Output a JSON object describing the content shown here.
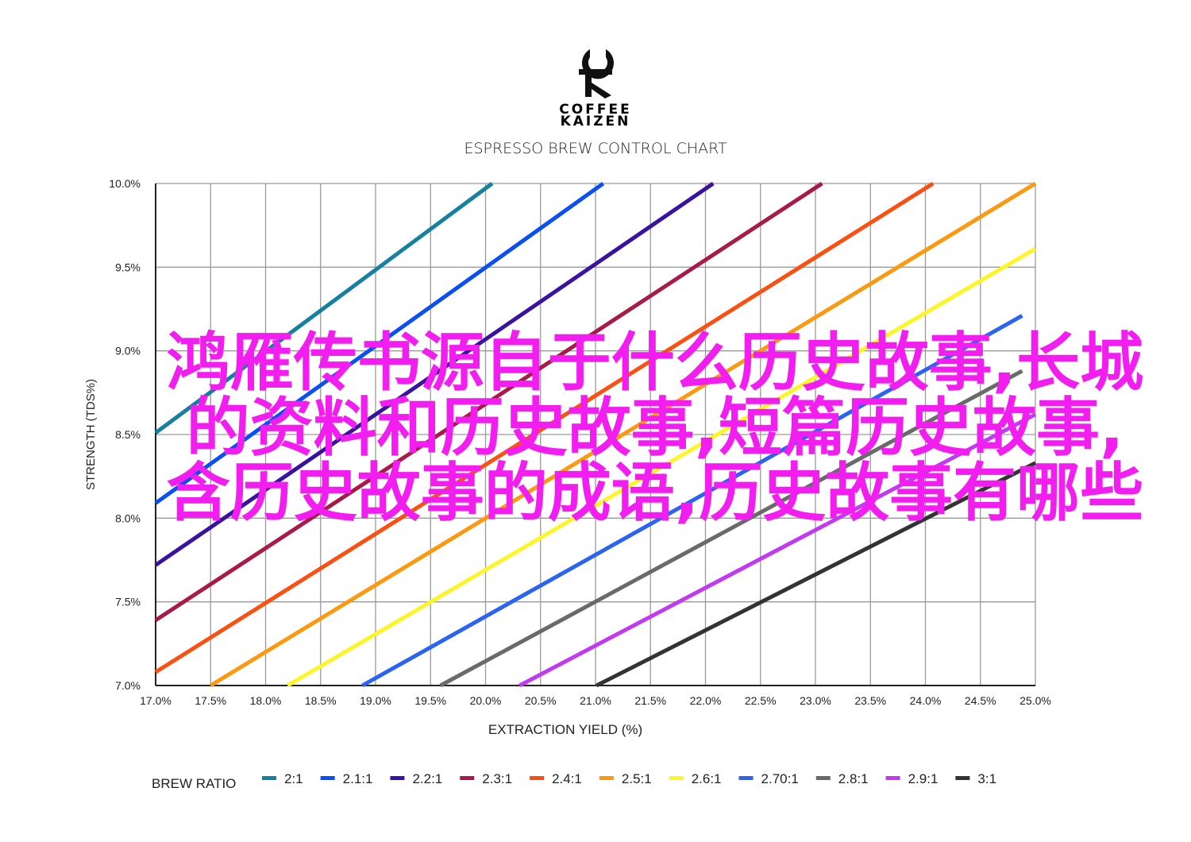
{
  "logo": {
    "line1": "COFFEE",
    "line2": "KAIZEN"
  },
  "overlay_text": "鸿雁传书源自于什么历史故事,长城的资料和历史故事,短篇历史故事,含历史故事的成语,历史故事有哪些",
  "chart_data": {
    "type": "line",
    "title": "ESPRESSO BREW CONTROL CHART",
    "xlabel": "EXTRACTION YIELD (%)",
    "ylabel": "STRENGTH (TDS%)",
    "xlim": [
      17.0,
      25.0
    ],
    "ylim": [
      7.0,
      10.0
    ],
    "grid": true,
    "x_ticks": [
      "17.0%",
      "17.5%",
      "18.0%",
      "18.5%",
      "19.0%",
      "19.5%",
      "20.0%",
      "20.5%",
      "21.0%",
      "21.5%",
      "22.0%",
      "22.5%",
      "23.0%",
      "23.5%",
      "24.0%",
      "24.5%",
      "25.0%"
    ],
    "y_ticks": [
      "7.0%",
      "7.5%",
      "8.0%",
      "8.5%",
      "9.0%",
      "9.5%",
      "10.0%"
    ],
    "legend_title": "BREW RATIO",
    "legend_position": "bottom",
    "series": [
      {
        "name": "2:1",
        "color": "#15809f",
        "points": [
          [
            17.0,
            8.51
          ],
          [
            20.06,
            10.0
          ]
        ]
      },
      {
        "name": "2.1:1",
        "color": "#0a50f0",
        "points": [
          [
            17.0,
            8.09
          ],
          [
            21.07,
            10.0
          ]
        ]
      },
      {
        "name": "2.2:1",
        "color": "#3a12a0",
        "points": [
          [
            17.0,
            7.72
          ],
          [
            22.07,
            10.0
          ]
        ]
      },
      {
        "name": "2.3:1",
        "color": "#a81a48",
        "points": [
          [
            17.0,
            7.39
          ],
          [
            23.06,
            10.0
          ]
        ]
      },
      {
        "name": "2.4:1",
        "color": "#fa5012",
        "points": [
          [
            17.0,
            7.08
          ],
          [
            24.07,
            10.0
          ]
        ]
      },
      {
        "name": "2.5:1",
        "color": "#fb9a10",
        "points": [
          [
            17.5,
            7.0
          ],
          [
            25.0,
            10.0
          ]
        ]
      },
      {
        "name": "2.6:1",
        "color": "#fcf52a",
        "points": [
          [
            18.2,
            7.0
          ],
          [
            25.0,
            9.61
          ]
        ]
      },
      {
        "name": "2.70:1",
        "color": "#2a64f0",
        "points": [
          [
            18.88,
            7.0
          ],
          [
            24.88,
            9.21
          ]
        ]
      },
      {
        "name": "2.8:1",
        "color": "#6a6a6a",
        "points": [
          [
            19.59,
            7.0
          ],
          [
            24.88,
            8.88
          ]
        ]
      },
      {
        "name": "2.9:1",
        "color": "#c23af0",
        "points": [
          [
            20.31,
            7.0
          ],
          [
            25.0,
            8.62
          ]
        ]
      },
      {
        "name": "3:1",
        "color": "#333333",
        "points": [
          [
            21.01,
            7.0
          ],
          [
            25.0,
            8.33
          ]
        ]
      }
    ]
  }
}
